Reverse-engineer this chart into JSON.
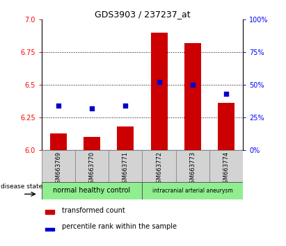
{
  "title": "GDS3903 / 237237_at",
  "samples": [
    "GSM663769",
    "GSM663770",
    "GSM663771",
    "GSM663772",
    "GSM663773",
    "GSM663774"
  ],
  "transformed_count": [
    6.13,
    6.1,
    6.18,
    6.9,
    6.82,
    6.36
  ],
  "percentile_rank": [
    34,
    32,
    34,
    52,
    50,
    43
  ],
  "ylim_left": [
    6.0,
    7.0
  ],
  "ylim_right": [
    0,
    100
  ],
  "yticks_left": [
    6.0,
    6.25,
    6.5,
    6.75,
    7.0
  ],
  "yticks_right": [
    0,
    25,
    50,
    75,
    100
  ],
  "bar_color": "#CC0000",
  "dot_color": "#0000CC",
  "bar_width": 0.5,
  "legend_items": [
    "transformed count",
    "percentile rank within the sample"
  ],
  "disease_state_label": "disease state",
  "group1_label": "normal healthy control",
  "group2_label": "intracranial arterial aneurysm",
  "group_color": "#90EE90",
  "sample_bg_color": "#d3d3d3",
  "grid_dotted_ticks": [
    6.25,
    6.5,
    6.75
  ]
}
